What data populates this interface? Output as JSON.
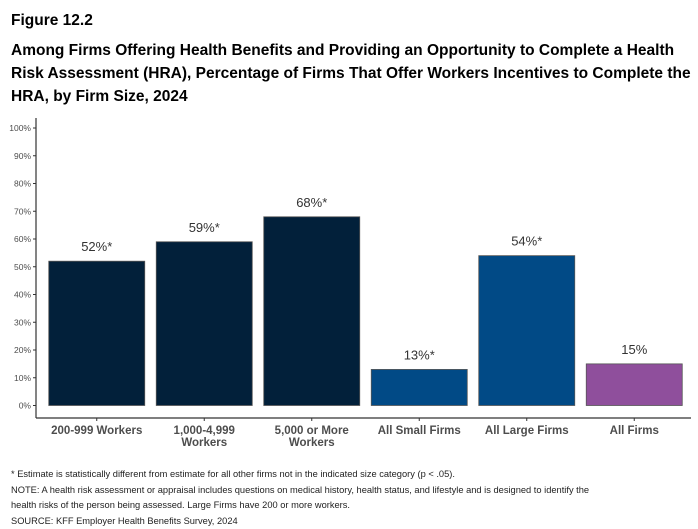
{
  "figure_label": "Figure 12.2",
  "chart_data": {
    "type": "bar",
    "title": "Among Firms Offering Health Benefits and Providing an Opportunity to Complete a Health Risk Assessment (HRA), Percentage of Firms That Offer Workers Incentives to Complete the HRA, by Firm Size, 2024",
    "categories": [
      [
        "200-999 Workers"
      ],
      [
        "1,000-4,999",
        "Workers"
      ],
      [
        "5,000 or More",
        "Workers"
      ],
      [
        "All Small Firms"
      ],
      [
        "All Large Firms"
      ],
      [
        "All Firms"
      ]
    ],
    "values": [
      52,
      59,
      68,
      13,
      54,
      15
    ],
    "data_labels": [
      "52%*",
      "59%*",
      "68%*",
      "13%*",
      "54%*",
      "15%"
    ],
    "colors": [
      "#02203a",
      "#02203a",
      "#02203a",
      "#014a86",
      "#014a86",
      "#8f4f9c"
    ],
    "ylim": [
      0,
      100
    ],
    "yticks": [
      "0%",
      "10%",
      "20%",
      "30%",
      "40%",
      "50%",
      "60%",
      "70%",
      "80%",
      "90%",
      "100%"
    ],
    "xlabel": "",
    "ylabel": "",
    "grid": false,
    "legend": "none"
  },
  "notes": [
    "* Estimate is statistically different from estimate for all other firms not in the indicated size category (p < .05).",
    "NOTE: A health risk assessment or appraisal includes questions on medical history, health status, and lifestyle and is designed to identify the",
    "health risks of the person being assessed. Large Firms have 200 or more workers.",
    "SOURCE: KFF Employer Health Benefits Survey, 2024"
  ]
}
